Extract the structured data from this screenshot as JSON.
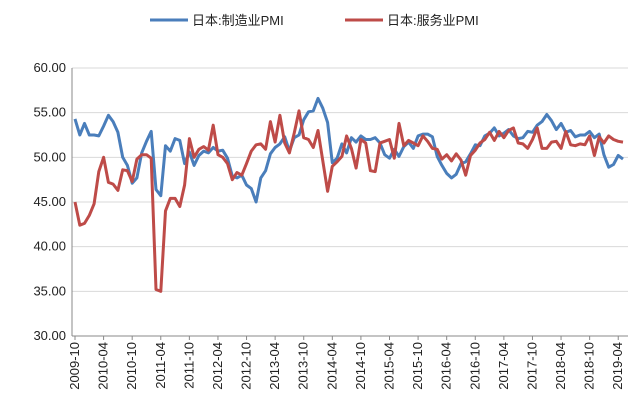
{
  "chart_data": {
    "type": "line",
    "categories": [
      "2009-10",
      null,
      null,
      null,
      null,
      null,
      "2010-04",
      null,
      null,
      null,
      null,
      null,
      "2010-10",
      null,
      null,
      null,
      null,
      null,
      "2011-04",
      null,
      null,
      null,
      null,
      null,
      "2011-10",
      null,
      null,
      null,
      null,
      null,
      "2012-04",
      null,
      null,
      null,
      null,
      null,
      "2012-10",
      null,
      null,
      null,
      null,
      null,
      "2013-04",
      null,
      null,
      null,
      null,
      null,
      "2013-10",
      null,
      null,
      null,
      null,
      null,
      "2014-04",
      null,
      null,
      null,
      null,
      null,
      "2014-10",
      null,
      null,
      null,
      null,
      null,
      "2015-04",
      null,
      null,
      null,
      null,
      null,
      "2015-10",
      null,
      null,
      null,
      null,
      null,
      "2016-04",
      null,
      null,
      null,
      null,
      null,
      "2016-10",
      null,
      null,
      null,
      null,
      null,
      "2017-04",
      null,
      null,
      null,
      null,
      null,
      "2017-10",
      null,
      null,
      null,
      null,
      null,
      "2018-04",
      null,
      null,
      null,
      null,
      null,
      "2018-10",
      null,
      null,
      null,
      null,
      null,
      "2019-04",
      null
    ],
    "series": [
      {
        "name": "日本:制造业PMI",
        "color": "#4a7ebb",
        "values": [
          54.3,
          52.5,
          53.8,
          52.5,
          52.5,
          52.4,
          53.5,
          54.7,
          54.0,
          52.8,
          50.0,
          49.1,
          47.1,
          47.7,
          50.5,
          51.8,
          52.9,
          46.4,
          45.7,
          51.3,
          50.7,
          52.1,
          51.9,
          49.3,
          50.6,
          49.1,
          50.2,
          50.7,
          50.5,
          51.1,
          50.7,
          50.8,
          49.9,
          47.9,
          47.7,
          48.0,
          46.9,
          46.5,
          45.0,
          47.7,
          48.5,
          50.4,
          51.1,
          51.5,
          52.3,
          50.7,
          52.2,
          52.5,
          54.2,
          55.1,
          55.2,
          56.6,
          55.5,
          53.9,
          49.4,
          49.9,
          51.5,
          50.5,
          52.2,
          51.7,
          52.4,
          52.0,
          52.0,
          52.2,
          51.6,
          50.3,
          49.9,
          50.9,
          50.1,
          51.2,
          51.7,
          51.0,
          52.4,
          52.6,
          52.6,
          52.3,
          50.1,
          49.1,
          48.2,
          47.7,
          48.1,
          49.3,
          49.5,
          50.4,
          51.4,
          51.3,
          52.4,
          52.7,
          53.3,
          52.4,
          52.7,
          53.1,
          52.4,
          52.1,
          52.2,
          52.9,
          52.8,
          53.6,
          54.0,
          54.8,
          54.1,
          53.1,
          53.8,
          52.8,
          53.0,
          52.3,
          52.5,
          52.5,
          52.9,
          52.2,
          52.6,
          50.3,
          48.9,
          49.2,
          50.2,
          49.8
        ]
      },
      {
        "name": "日本:服务业PMI",
        "color": "#be4b48",
        "values": [
          45.0,
          42.4,
          42.6,
          43.5,
          44.8,
          48.4,
          50.0,
          47.2,
          47.0,
          46.3,
          48.6,
          48.5,
          47.3,
          49.8,
          50.3,
          50.3,
          49.9,
          35.2,
          35.0,
          44.0,
          45.4,
          45.4,
          44.5,
          46.9,
          52.1,
          50.0,
          50.9,
          51.2,
          50.8,
          53.6,
          50.3,
          50.0,
          49.3,
          47.5,
          48.3,
          48.0,
          49.3,
          50.7,
          51.4,
          51.5,
          50.9,
          54.0,
          51.7,
          54.7,
          51.6,
          50.5,
          52.7,
          55.2,
          52.2,
          52.0,
          51.1,
          53.0,
          49.6,
          46.2,
          49.0,
          49.5,
          50.1,
          52.4,
          51.0,
          48.8,
          52.0,
          51.6,
          48.5,
          48.4,
          51.6,
          51.8,
          52.0,
          49.9,
          53.8,
          51.3,
          51.9,
          51.6,
          51.3,
          52.4,
          51.8,
          51.0,
          50.9,
          49.8,
          50.3,
          49.6,
          50.4,
          49.7,
          48.0,
          50.2,
          50.8,
          51.6,
          52.0,
          52.8,
          51.9,
          52.9,
          52.2,
          53.0,
          53.3,
          51.6,
          51.5,
          51.0,
          52.0,
          53.3,
          51.0,
          51.0,
          51.7,
          51.8,
          51.0,
          52.9,
          51.4,
          51.3,
          51.5,
          51.4,
          52.4,
          50.2,
          52.3,
          51.6,
          52.4,
          52.0,
          51.8,
          51.7
        ]
      }
    ],
    "ylim": [
      30,
      60
    ],
    "yticks": [
      {
        "value": 30,
        "label": "30.00"
      },
      {
        "value": 35,
        "label": "35.00"
      },
      {
        "value": 40,
        "label": "40.00"
      },
      {
        "value": 45,
        "label": "45.00"
      },
      {
        "value": 50,
        "label": "50.00"
      },
      {
        "value": 55,
        "label": "55.00"
      },
      {
        "value": 60,
        "label": "60.00"
      }
    ],
    "grid": true,
    "legend": "top"
  }
}
